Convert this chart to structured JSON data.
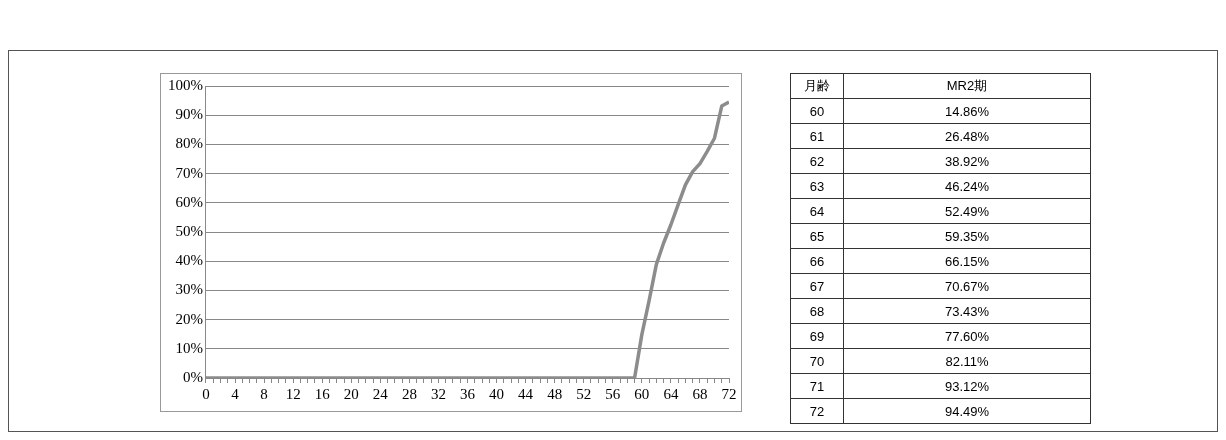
{
  "chart_data": [
    {
      "type": "line",
      "x": [
        0,
        1,
        2,
        3,
        4,
        5,
        6,
        7,
        8,
        9,
        10,
        11,
        12,
        13,
        14,
        15,
        16,
        17,
        18,
        19,
        20,
        21,
        22,
        23,
        24,
        25,
        26,
        27,
        28,
        29,
        30,
        31,
        32,
        33,
        34,
        35,
        36,
        37,
        38,
        39,
        40,
        41,
        42,
        43,
        44,
        45,
        46,
        47,
        48,
        49,
        50,
        51,
        52,
        53,
        54,
        55,
        56,
        57,
        58,
        59,
        60,
        61,
        62,
        63,
        64,
        65,
        66,
        67,
        68,
        69,
        70,
        71,
        72
      ],
      "values": [
        0,
        0,
        0,
        0,
        0,
        0,
        0,
        0,
        0,
        0,
        0,
        0,
        0,
        0,
        0,
        0,
        0,
        0,
        0,
        0,
        0,
        0,
        0,
        0,
        0,
        0,
        0,
        0,
        0,
        0,
        0,
        0,
        0,
        0,
        0,
        0,
        0,
        0,
        0,
        0,
        0,
        0,
        0,
        0,
        0,
        0,
        0,
        0,
        0,
        0,
        0,
        0,
        0,
        0,
        0,
        0,
        0,
        0,
        0,
        0,
        14.86,
        26.48,
        38.92,
        46.24,
        52.49,
        59.35,
        66.15,
        70.67,
        73.43,
        77.6,
        82.11,
        93.12,
        94.49
      ],
      "color": "#8c8c8c",
      "xlim": [
        0,
        72
      ],
      "xticks": [
        0,
        {
          "value": 1,
          "label": null
        },
        {
          "value": 2,
          "label": null
        },
        {
          "value": 3,
          "label": null
        },
        4,
        {
          "value": 5,
          "label": null
        },
        {
          "value": 6,
          "label": null
        },
        {
          "value": 7,
          "label": null
        },
        8,
        {
          "value": 9,
          "label": null
        },
        {
          "value": 10,
          "label": null
        },
        {
          "value": 11,
          "label": null
        },
        12,
        {
          "value": 13,
          "label": null
        },
        {
          "value": 14,
          "label": null
        },
        {
          "value": 15,
          "label": null
        },
        16,
        {
          "value": 17,
          "label": null
        },
        {
          "value": 18,
          "label": null
        },
        {
          "value": 19,
          "label": null
        },
        20,
        {
          "value": 21,
          "label": null
        },
        {
          "value": 22,
          "label": null
        },
        {
          "value": 23,
          "label": null
        },
        24,
        {
          "value": 25,
          "label": null
        },
        {
          "value": 26,
          "label": null
        },
        {
          "value": 27,
          "label": null
        },
        28,
        {
          "value": 29,
          "label": null
        },
        {
          "value": 30,
          "label": null
        },
        {
          "value": 31,
          "label": null
        },
        32,
        {
          "value": 33,
          "label": null
        },
        {
          "value": 34,
          "label": null
        },
        {
          "value": 35,
          "label": null
        },
        36,
        {
          "value": 37,
          "label": null
        },
        {
          "value": 38,
          "label": null
        },
        {
          "value": 39,
          "label": null
        },
        40,
        {
          "value": 41,
          "label": null
        },
        {
          "value": 42,
          "label": null
        },
        {
          "value": 43,
          "label": null
        },
        44,
        {
          "value": 45,
          "label": null
        },
        {
          "value": 46,
          "label": null
        },
        {
          "value": 47,
          "label": null
        },
        48,
        {
          "value": 49,
          "label": null
        },
        {
          "value": 50,
          "label": null
        },
        {
          "value": 51,
          "label": null
        },
        52,
        {
          "value": 53,
          "label": null
        },
        {
          "value": 54,
          "label": null
        },
        {
          "value": 55,
          "label": null
        },
        56,
        {
          "value": 57,
          "label": null
        },
        {
          "value": 58,
          "label": null
        },
        {
          "value": 59,
          "label": null
        },
        60,
        {
          "value": 61,
          "label": null
        },
        {
          "value": 62,
          "label": null
        },
        {
          "value": 63,
          "label": null
        },
        64,
        {
          "value": 65,
          "label": null
        },
        {
          "value": 66,
          "label": null
        },
        {
          "value": 67,
          "label": null
        },
        68,
        {
          "value": 69,
          "label": null
        },
        {
          "value": 70,
          "label": null
        },
        {
          "value": 71,
          "label": null
        },
        72
      ],
      "ylim": [
        0,
        100
      ],
      "yticks": [
        {
          "value": 0,
          "label": "0%"
        },
        {
          "value": 10,
          "label": "10%"
        },
        {
          "value": 20,
          "label": "20%"
        },
        {
          "value": 30,
          "label": "30%"
        },
        {
          "value": 40,
          "label": "40%"
        },
        {
          "value": 50,
          "label": "50%"
        },
        {
          "value": 60,
          "label": "60%"
        },
        {
          "value": 70,
          "label": "70%"
        },
        {
          "value": 80,
          "label": "80%"
        },
        {
          "value": 90,
          "label": "90%"
        },
        {
          "value": 100,
          "label": "100%"
        }
      ],
      "grid": "y"
    },
    {
      "type": "heatmap",
      "ylabel": "月齢",
      "categories": [
        "MR2期"
      ],
      "y_categories": [
        "60",
        "61",
        "62",
        "63",
        "64",
        "65",
        "66",
        "67",
        "68",
        "69",
        "70",
        "71",
        "72"
      ],
      "cells": [
        [
          "14.86%"
        ],
        [
          "26.48%"
        ],
        [
          "38.92%"
        ],
        [
          "46.24%"
        ],
        [
          "52.49%"
        ],
        [
          "59.35%"
        ],
        [
          "66.15%"
        ],
        [
          "70.67%"
        ],
        [
          "73.43%"
        ],
        [
          "77.60%"
        ],
        [
          "82.11%"
        ],
        [
          "93.12%"
        ],
        [
          "94.49%"
        ]
      ]
    }
  ]
}
